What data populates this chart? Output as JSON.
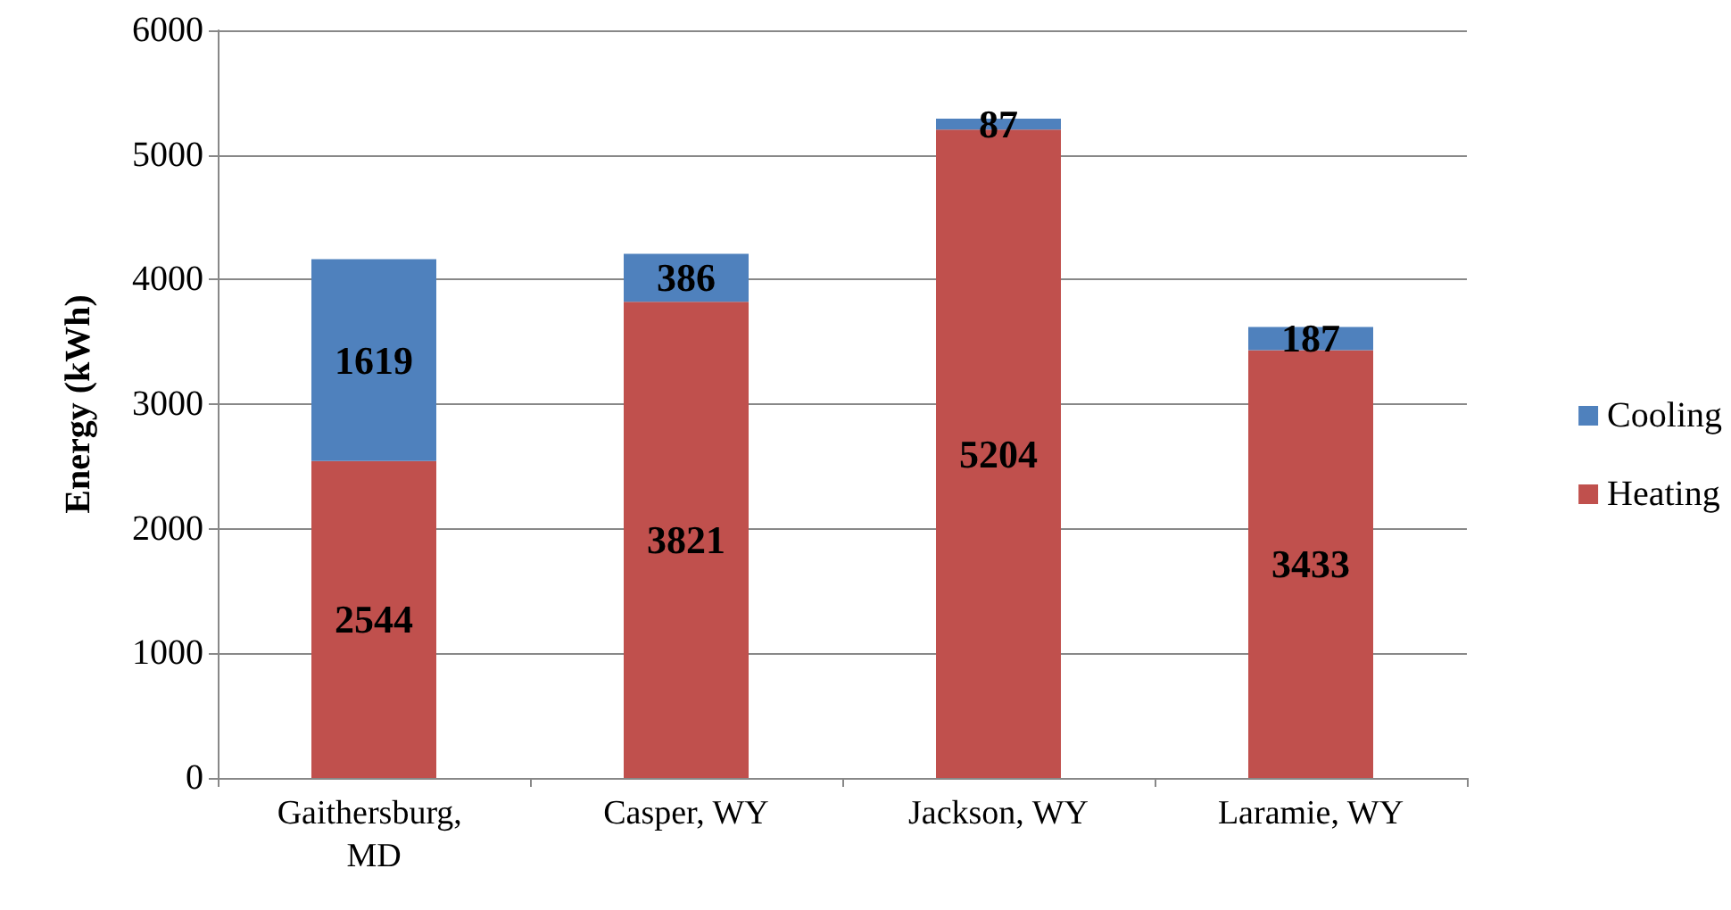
{
  "chart_data": {
    "type": "bar",
    "stacked": true,
    "ylabel": "Energy (kWh)",
    "categories": [
      "Gaithersburg, MD",
      "Casper, WY",
      "Jackson, WY",
      "Laramie, WY"
    ],
    "series": [
      {
        "name": "Heating",
        "color": "#c0504d",
        "values": [
          2544,
          3821,
          5204,
          3433
        ]
      },
      {
        "name": "Cooling",
        "color": "#4f81bd",
        "values": [
          1619,
          386,
          87,
          187
        ]
      }
    ],
    "ylim": [
      0,
      6000
    ],
    "yticks": [
      0,
      1000,
      2000,
      3000,
      4000,
      5000,
      6000
    ],
    "grid": "y",
    "legend": "right",
    "data_labels": true
  }
}
